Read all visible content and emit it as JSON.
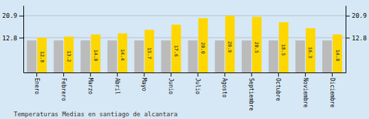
{
  "chart_data": {
    "type": "bar",
    "title": "Temperaturas Medias en santiago de alcantara",
    "categories": [
      "Enero",
      "Febrero",
      "Marzo",
      "Abril",
      "Mayo",
      "Junio",
      "Julio",
      "Agosto",
      "Septiembre",
      "Octubre",
      "Noviembre",
      "Diciembre"
    ],
    "series": [
      {
        "color": "#BBBBBB",
        "values": [
          11.8,
          11.8,
          11.8,
          11.8,
          11.8,
          11.8,
          11.8,
          11.8,
          11.8,
          11.8,
          11.8,
          11.8
        ]
      },
      {
        "color": "#FFD700",
        "values": [
          12.8,
          13.2,
          14.0,
          14.4,
          15.7,
          17.6,
          20.0,
          20.9,
          20.5,
          18.5,
          16.3,
          14.0
        ],
        "value_labels": [
          "12.8",
          "13.2",
          "14.0",
          "14.4",
          "15.7",
          "17.6",
          "20.0",
          "20.9",
          "20.5",
          "18.5",
          "16.3",
          "14.0"
        ]
      }
    ],
    "ylim": [
      0,
      24.662
    ],
    "yticks": [
      12.8,
      20.9
    ],
    "y2lim": [
      0,
      24.662
    ],
    "y2ticks": [
      12.8,
      20.9
    ],
    "grid": true,
    "data_labels": true
  }
}
